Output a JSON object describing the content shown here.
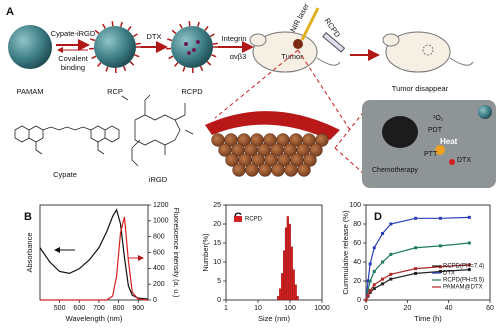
{
  "schematic": {
    "panel": "A",
    "pamam": "PAMAM",
    "step1_top": "Cypate-iRGD",
    "step1_bottom": [
      "Covalent",
      "binding"
    ],
    "rcp": "RCP",
    "step2": "DTX",
    "rcpd": "RCPD",
    "step3_top": "Integrin",
    "step3_bottom": "αvβ3",
    "laser": "NIR laser",
    "tumor": "Tumor",
    "injection": "RCPD",
    "result": "Tumor disappear",
    "cypate": "Cypate",
    "irgd": "iRGD",
    "cell": {
      "singlet_oxygen": "¹O₂",
      "pdt": "PDT",
      "heat": "Heat",
      "ptt": "PTT",
      "dtx": "DTX",
      "chemo": "Chemotherapy"
    }
  },
  "chart_data": [
    {
      "type": "line",
      "panel": "B",
      "xlabel": "Wavelength (nm)",
      "ylabel": "Absorbance",
      "y2label": "Fluorescence intensity (a. u.)",
      "x": [
        400,
        450,
        500,
        550,
        600,
        650,
        700,
        740,
        770,
        790,
        810,
        830,
        850,
        870,
        900,
        950
      ],
      "xlim": [
        400,
        950
      ],
      "xticks": [
        500,
        600,
        700,
        800,
        900
      ],
      "ylim": [
        0,
        1
      ],
      "y2lim": [
        0,
        1200
      ],
      "y2ticks": [
        0,
        200,
        400,
        600,
        800,
        1000,
        1200
      ],
      "series": [
        {
          "color": "#111111",
          "values": [
            0.55,
            0.4,
            0.3,
            0.28,
            0.33,
            0.42,
            0.55,
            0.72,
            0.88,
            0.95,
            0.8,
            0.45,
            0.15,
            0.05,
            0.02,
            0.01
          ]
        },
        {
          "color": "#d42020",
          "axis": "y2",
          "values": [
            0,
            0,
            0,
            0,
            0,
            0,
            0,
            0,
            50,
            300,
            850,
            1050,
            500,
            100,
            10,
            0
          ]
        }
      ]
    },
    {
      "type": "histogram",
      "panel": "C",
      "xlabel": "Size (nm)",
      "ylabel": "Number(%)",
      "xlog": true,
      "xlim": [
        1,
        1000
      ],
      "xticks": [
        1,
        10,
        100,
        1000
      ],
      "ylim": [
        0,
        25
      ],
      "yticks": [
        0,
        5,
        10,
        15,
        20,
        25
      ],
      "bins": [
        40,
        46,
        53,
        61,
        70,
        80,
        92,
        106,
        122,
        140,
        161,
        185
      ],
      "legend": "upper left",
      "series": [
        {
          "name": "RCPD",
          "color": "#d42020",
          "values": [
            1,
            3,
            7,
            13,
            19,
            22,
            20,
            14,
            8,
            4,
            1
          ]
        }
      ]
    },
    {
      "type": "line",
      "panel": "D",
      "xlabel": "Time (h)",
      "ylabel": "Cummulative release (%)",
      "x": [
        0,
        1,
        2,
        4,
        8,
        12,
        24,
        36,
        50
      ],
      "xlim": [
        0,
        60
      ],
      "xticks": [
        0,
        20,
        40,
        60
      ],
      "ylim": [
        0,
        100
      ],
      "yticks": [
        0,
        20,
        40,
        60,
        80,
        100
      ],
      "legend": "lower right",
      "markers": true,
      "series": [
        {
          "name": "RCPD(PH=7.4)",
          "color": "#222222",
          "values": [
            0,
            4,
            8,
            12,
            17,
            22,
            28,
            30,
            32
          ]
        },
        {
          "name": "DTX",
          "color": "#2a3fb8",
          "values": [
            0,
            20,
            38,
            55,
            70,
            80,
            86,
            86,
            87
          ]
        },
        {
          "name": "RCPD(PH=5.5)",
          "color": "#1f7a64",
          "values": [
            0,
            10,
            20,
            30,
            40,
            48,
            55,
            57,
            60
          ]
        },
        {
          "name": "PAMAM@DTX",
          "color": "#b02828",
          "values": [
            0,
            5,
            10,
            16,
            22,
            27,
            33,
            35,
            37
          ]
        }
      ]
    }
  ]
}
